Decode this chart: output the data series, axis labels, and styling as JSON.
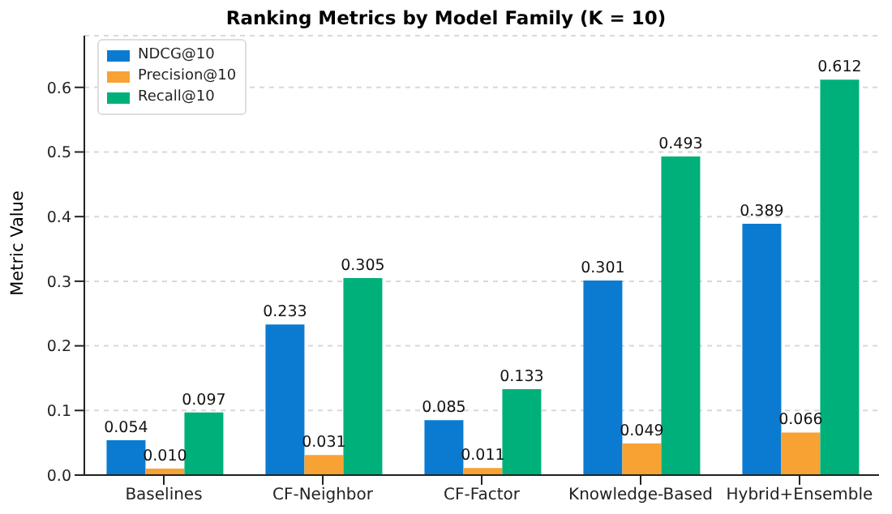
{
  "chart_data": {
    "type": "bar",
    "title": "Ranking Metrics by Model Family (K = 10)",
    "ylabel": "Metric Value",
    "categories": [
      "Baselines",
      "CF-Neighbor",
      "CF-Factor",
      "Knowledge-Based",
      "Hybrid+Ensemble"
    ],
    "series": [
      {
        "name": "NDCG@10",
        "color": "#0b7bd1",
        "values": [
          0.054,
          0.233,
          0.085,
          0.301,
          0.389
        ],
        "value_labels": [
          "0.054",
          "0.233",
          "0.085",
          "0.301",
          "0.389"
        ]
      },
      {
        "name": "Precision@10",
        "color": "#f7a233",
        "values": [
          0.01,
          0.031,
          0.011,
          0.049,
          0.066
        ],
        "value_labels": [
          "0.010",
          "0.031",
          "0.011",
          "0.049",
          "0.066"
        ]
      },
      {
        "name": "Recall@10",
        "color": "#00b07a",
        "values": [
          0.097,
          0.305,
          0.133,
          0.493,
          0.612
        ],
        "value_labels": [
          "0.097",
          "0.305",
          "0.133",
          "0.493",
          "0.612"
        ]
      }
    ],
    "ylim": [
      0,
      0.68
    ],
    "yticks": [
      {
        "value": 0,
        "label": "0.0"
      },
      {
        "value": 0.1,
        "label": "0.1"
      },
      {
        "value": 0.2,
        "label": "0.2"
      },
      {
        "value": 0.3,
        "label": "0.3"
      },
      {
        "value": 0.4,
        "label": "0.4"
      },
      {
        "value": 0.5,
        "label": "0.5"
      },
      {
        "value": 0.6,
        "label": "0.6"
      }
    ],
    "grid": "y",
    "legend": "top left"
  }
}
